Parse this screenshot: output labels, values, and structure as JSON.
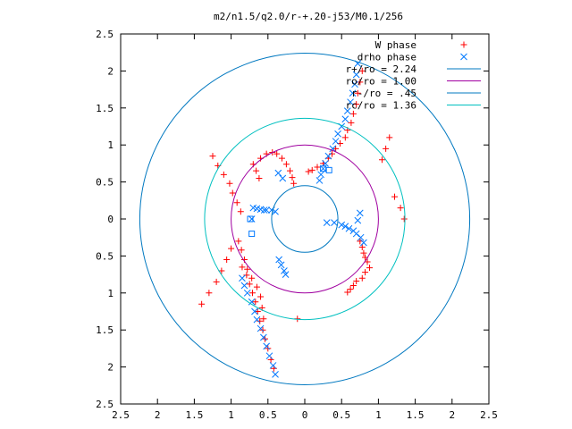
{
  "chart_data": {
    "type": "scatter",
    "title": "m2/n1.5/q2.0/r-+.20-j53/M0.1/256",
    "xlabel": "",
    "ylabel": "",
    "xlim": [
      -2.5,
      2.5
    ],
    "ylim": [
      -2.5,
      2.5
    ],
    "xticks": [
      "2.5",
      "2",
      "1.5",
      "1",
      "0.5",
      "0",
      "0.5",
      "1",
      "1.5",
      "2",
      "2.5"
    ],
    "yticks": [
      "2.5",
      "2",
      "1.5",
      "1",
      "0.5",
      "0",
      "0.5",
      "1",
      "1.5",
      "2",
      "2.5"
    ],
    "grid": false,
    "legend_position": "top-right",
    "series": [
      {
        "name": "W phase",
        "kind": "points",
        "marker": "plus",
        "color": "#ff0000",
        "x": [
          0.78,
          0.75,
          0.72,
          0.7,
          0.66,
          0.63,
          0.58,
          0.55,
          0.48,
          0.42,
          0.37,
          0.32,
          0.25,
          0.17,
          0.1,
          0.05,
          0.75,
          0.78,
          0.8,
          0.82,
          0.85,
          0.88,
          0.82,
          0.78,
          0.7,
          0.66,
          0.62,
          0.58,
          -0.42,
          -0.46,
          -0.5,
          -0.54,
          -0.57,
          -0.61,
          -0.64,
          -0.67,
          -0.71,
          -0.75,
          -0.79,
          -0.85,
          -0.62,
          -0.66,
          -0.7,
          -0.6,
          -0.52,
          -0.44,
          -0.38,
          -0.31,
          -0.25,
          -0.2,
          -0.17,
          -0.15,
          -0.87,
          -0.92,
          -0.98,
          -1.02,
          -1.1,
          -1.18,
          -1.25,
          -0.9,
          -0.86,
          -0.82,
          -0.78,
          -0.72,
          -0.65,
          -0.6,
          -0.58,
          -0.56,
          -1.0,
          -1.06,
          -1.13,
          -1.2,
          -1.3,
          -1.4,
          -0.1,
          1.05,
          1.1,
          1.15,
          1.22,
          1.3,
          1.35
        ],
        "y": [
          2.0,
          1.85,
          1.7,
          1.55,
          1.42,
          1.3,
          1.2,
          1.1,
          1.02,
          0.95,
          0.88,
          0.82,
          0.75,
          0.7,
          0.66,
          0.64,
          -0.3,
          -0.38,
          -0.46,
          -0.52,
          -0.58,
          -0.66,
          -0.72,
          -0.8,
          -0.84,
          -0.9,
          -0.95,
          -0.99,
          -2.02,
          -1.9,
          -1.75,
          -1.62,
          -1.5,
          -1.38,
          -1.25,
          -1.12,
          -1.0,
          -0.88,
          -0.76,
          -0.65,
          0.55,
          0.65,
          0.74,
          0.82,
          0.88,
          0.9,
          0.88,
          0.82,
          0.74,
          0.65,
          0.56,
          0.48,
          0.1,
          0.22,
          0.35,
          0.48,
          0.6,
          0.72,
          0.85,
          -0.3,
          -0.42,
          -0.55,
          -0.68,
          -0.8,
          -0.92,
          -1.05,
          -1.2,
          -1.35,
          -0.4,
          -0.55,
          -0.7,
          -0.85,
          -1.0,
          -1.15,
          -1.35,
          0.8,
          0.95,
          1.1,
          0.3,
          0.15,
          0.0
        ]
      },
      {
        "name": "drho phase",
        "kind": "points",
        "marker": "cross",
        "color": "#0078ff",
        "x": [
          0.72,
          0.7,
          0.68,
          0.65,
          0.62,
          0.58,
          0.55,
          0.5,
          0.45,
          0.42,
          0.38,
          0.32,
          0.28,
          0.25,
          0.22,
          0.2,
          0.3,
          0.4,
          0.5,
          0.55,
          0.6,
          0.66,
          0.7,
          0.76,
          0.8,
          -0.4,
          -0.43,
          -0.48,
          -0.52,
          -0.56,
          -0.6,
          -0.65,
          -0.68,
          -0.72,
          -0.78,
          -0.82,
          -0.85,
          -0.7,
          -0.65,
          -0.6,
          -0.55,
          -0.52,
          -0.45,
          -0.4,
          -0.35,
          -0.32,
          -0.28,
          -0.26,
          0.75,
          0.72,
          -0.72,
          -0.36,
          -0.3
        ],
        "y": [
          2.1,
          1.95,
          1.82,
          1.7,
          1.58,
          1.46,
          1.35,
          1.25,
          1.15,
          1.05,
          0.95,
          0.85,
          0.75,
          0.68,
          0.6,
          0.52,
          -0.05,
          -0.05,
          -0.08,
          -0.1,
          -0.13,
          -0.16,
          -0.2,
          -0.25,
          -0.32,
          -2.1,
          -1.98,
          -1.85,
          -1.72,
          -1.6,
          -1.48,
          -1.36,
          -1.25,
          -1.12,
          -1.0,
          -0.9,
          -0.8,
          0.15,
          0.14,
          0.13,
          0.12,
          0.12,
          0.12,
          0.1,
          -0.55,
          -0.62,
          -0.7,
          -0.75,
          0.08,
          -0.02,
          0.0,
          0.62,
          0.55
        ]
      },
      {
        "name": "",
        "kind": "points",
        "marker": "square",
        "color": "#0078ff",
        "x": [
          0.25,
          0.33,
          -0.74,
          -0.72
        ],
        "y": [
          0.68,
          0.66,
          0.0,
          -0.2
        ]
      },
      {
        "name": "r+/ro = 2.24",
        "kind": "circle",
        "radius": 2.24,
        "color": "#0078c0"
      },
      {
        "name": "ro/ro = 1.00",
        "kind": "circle",
        "radius": 1.0,
        "color": "#a000a0"
      },
      {
        "name": "r-/ro = .45",
        "kind": "circle",
        "radius": 0.45,
        "color": "#0078c0"
      },
      {
        "name": "rc/ro = 1.36",
        "kind": "circle",
        "radius": 1.36,
        "color": "#00c0c0"
      }
    ]
  }
}
